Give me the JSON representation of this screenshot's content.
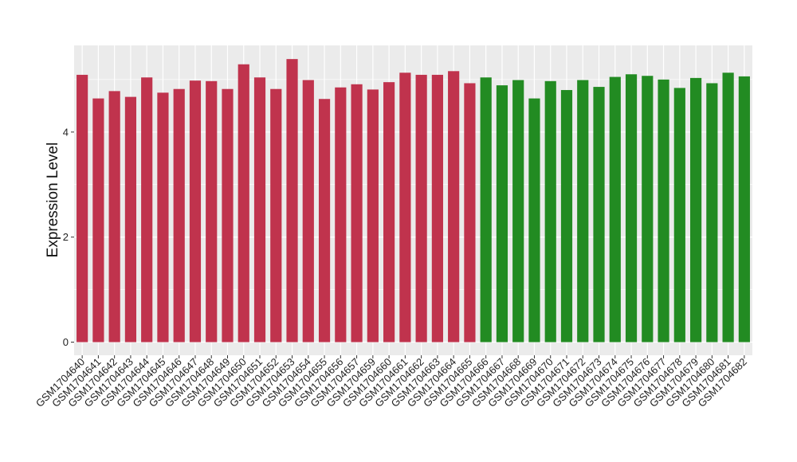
{
  "chart_data": {
    "type": "bar",
    "title": "",
    "xlabel": "",
    "ylabel": "Expression Level",
    "ylim": [
      -0.25,
      5.65
    ],
    "yticks": [
      0,
      2,
      4
    ],
    "ytick_labels": [
      "0",
      "2",
      "4"
    ],
    "grid": true,
    "legend": "none",
    "categories": [
      "GSM1704640",
      "GSM1704641",
      "GSM1704642",
      "GSM1704643",
      "GSM1704644",
      "GSM1704645",
      "GSM1704646",
      "GSM1704647",
      "GSM1704648",
      "GSM1704649",
      "GSM1704650",
      "GSM1704651",
      "GSM1704652",
      "GSM1704653",
      "GSM1704654",
      "GSM1704655",
      "GSM1704656",
      "GSM1704657",
      "GSM1704659",
      "GSM1704660",
      "GSM1704661",
      "GSM1704662",
      "GSM1704663",
      "GSM1704664",
      "GSM1704665",
      "GSM1704666",
      "GSM1704667",
      "GSM1704668",
      "GSM1704669",
      "GSM1704670",
      "GSM1704671",
      "GSM1704672",
      "GSM1704673",
      "GSM1704674",
      "GSM1704675",
      "GSM1704676",
      "GSM1704677",
      "GSM1704678",
      "GSM1704679",
      "GSM1704680",
      "GSM1704681",
      "GSM1704682"
    ],
    "values": [
      5.09,
      4.64,
      4.78,
      4.67,
      5.04,
      4.75,
      4.82,
      4.98,
      4.97,
      4.82,
      5.29,
      5.04,
      4.82,
      5.39,
      4.99,
      4.63,
      4.85,
      4.91,
      4.81,
      4.95,
      5.13,
      5.09,
      5.09,
      5.16,
      4.93,
      5.04,
      4.89,
      4.99,
      4.64,
      4.97,
      4.8,
      4.99,
      4.86,
      5.05,
      5.1,
      5.07,
      5.0,
      4.84,
      5.03,
      4.93,
      5.13,
      5.06
    ],
    "groups": [
      "red",
      "red",
      "red",
      "red",
      "red",
      "red",
      "red",
      "red",
      "red",
      "red",
      "red",
      "red",
      "red",
      "red",
      "red",
      "red",
      "red",
      "red",
      "red",
      "red",
      "red",
      "red",
      "red",
      "red",
      "red",
      "green",
      "green",
      "green",
      "green",
      "green",
      "green",
      "green",
      "green",
      "green",
      "green",
      "green",
      "green",
      "green",
      "green",
      "green",
      "green",
      "green"
    ],
    "colors": {
      "red": "#c0334d",
      "green": "#228b22",
      "panel_background": "#ebebeb",
      "grid": "#ffffff",
      "text": "#222222"
    }
  }
}
